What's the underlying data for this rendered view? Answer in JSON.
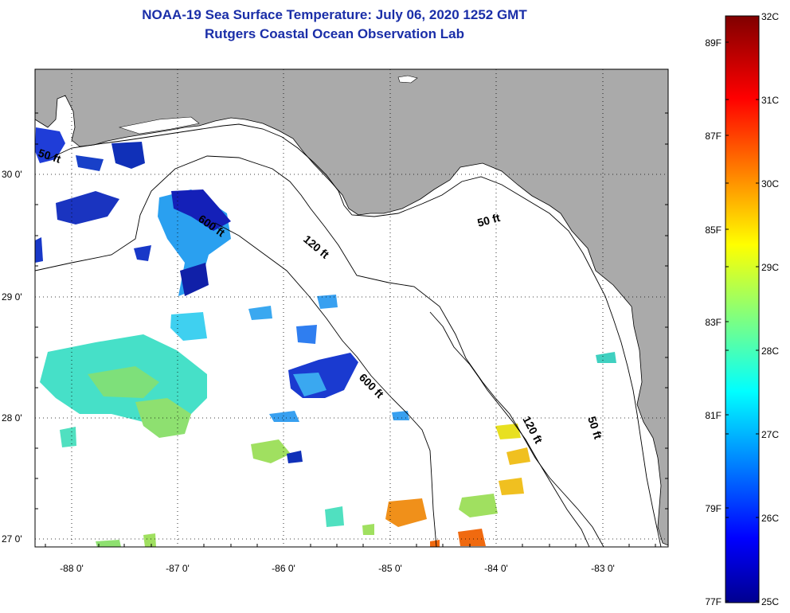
{
  "title": {
    "line1": "NOAA-19 Sea Surface Temperature:  July 06, 2020 1252 GMT",
    "line2": "Rutgers Coastal Ocean Observation Lab"
  },
  "map": {
    "longitude_ticks": [
      "-88 0'",
      "-87 0'",
      "-86 0'",
      "-85 0'",
      "-84 0'",
      "-83 0'"
    ],
    "latitude_ticks": [
      "30 0'",
      "29 0'",
      "28 0'",
      "27 0'"
    ],
    "contour_labels": [
      "50 ft",
      "600 ft",
      "120 ft",
      "600 ft",
      "50 ft",
      "120 ft",
      "50 ft"
    ]
  },
  "colorbar": {
    "celsius": [
      "32C",
      "31C",
      "30C",
      "29C",
      "28C",
      "27C",
      "26C",
      "25C"
    ],
    "fahrenheit": [
      "89F",
      "87F",
      "85F",
      "83F",
      "81F",
      "79F",
      "77F"
    ]
  },
  "colors": {
    "title": "#1a2ea8",
    "land": "#aaaaaa",
    "water": "#ffffff"
  }
}
